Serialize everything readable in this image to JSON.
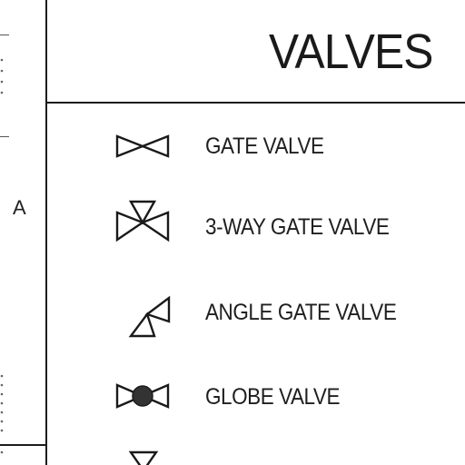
{
  "title": "VALVES",
  "zone_label": "A",
  "legend": [
    {
      "label": "GATE VALVE",
      "icon": "gate-valve-icon"
    },
    {
      "label": "3-WAY GATE VALVE",
      "icon": "three-way-gate-valve-icon"
    },
    {
      "label": "ANGLE GATE VALVE",
      "icon": "angle-gate-valve-icon"
    },
    {
      "label": "GLOBE VALVE",
      "icon": "globe-valve-icon"
    }
  ],
  "colors": {
    "ink": "#1a1a1a",
    "globe_fill": "#333333"
  }
}
